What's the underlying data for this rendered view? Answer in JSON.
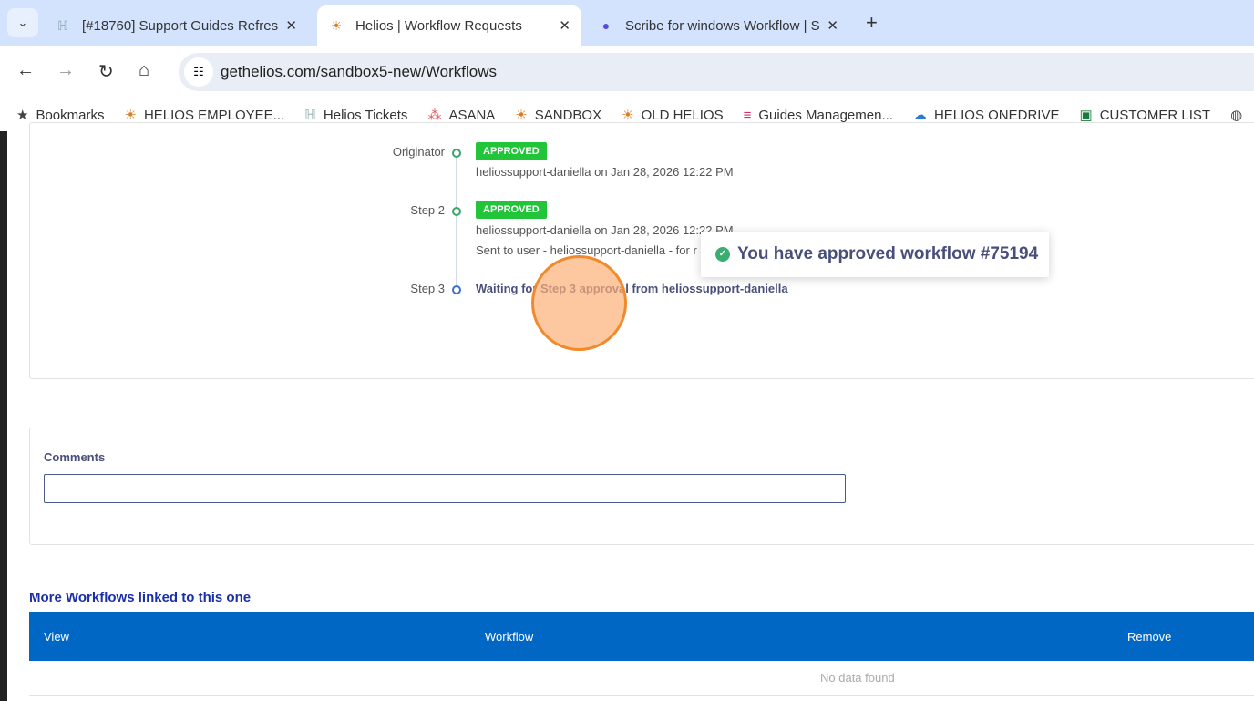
{
  "browser": {
    "tabs": [
      {
        "title": "[#18760] Support Guides Refres",
        "icon": "helios-logo"
      },
      {
        "title": "Helios | Workflow Requests",
        "icon": "sun-icon"
      },
      {
        "title": "Scribe for windows Workflow | S",
        "icon": "scribe-icon"
      }
    ],
    "url": "gethelios.com/sandbox5-new/Workflows",
    "bookmarks": [
      "Bookmarks",
      "HELIOS EMPLOYEE...",
      "Helios Tickets",
      "ASANA",
      "SANDBOX",
      "OLD HELIOS",
      "Guides Managemen...",
      "HELIOS ONEDRIVE",
      "CUSTOMER LIST"
    ]
  },
  "timeline": [
    {
      "label": "Originator",
      "status": "APPROVED",
      "detail": "heliossupport-daniella on Jan 28, 2026 12:22 PM"
    },
    {
      "label": "Step 2",
      "status": "APPROVED",
      "detail": "heliossupport-daniella on Jan 28, 2026 12:22 PM",
      "note": "Sent to user - heliossupport-daniella - for r"
    },
    {
      "label": "Step 3",
      "detail": "Waiting for Step 3 approval from heliossupport-daniella"
    }
  ],
  "toast": "You have approved workflow #75194",
  "comments": {
    "label": "Comments",
    "value": ""
  },
  "linked": {
    "title": "More Workflows linked to this one",
    "columns": [
      "View",
      "Workflow",
      "Remove"
    ],
    "empty": "No data found"
  },
  "colors": {
    "approved": "#22c53a",
    "header": "#0067c5"
  }
}
